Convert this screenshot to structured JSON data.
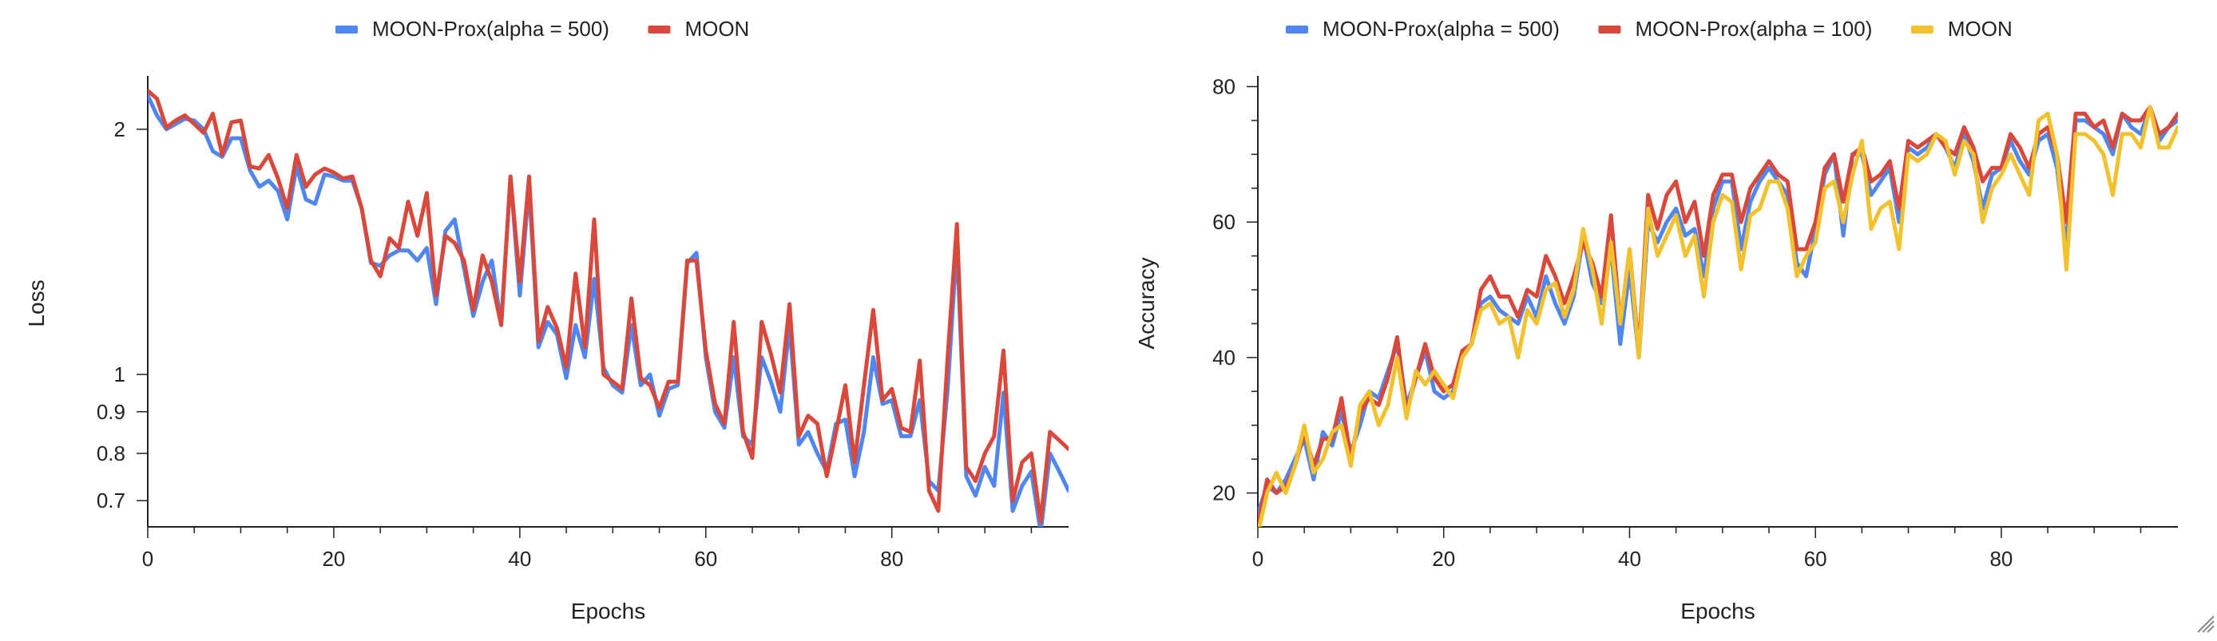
{
  "colors": {
    "blue": "#4f86f0",
    "red": "#d9483b",
    "yellow": "#f2c12e",
    "axis": "#222222"
  },
  "chart_data": [
    {
      "type": "line",
      "title": "",
      "xlabel": "Epochs",
      "ylabel": "Loss",
      "yscale": "log",
      "xlim": [
        0,
        99
      ],
      "ylim": [
        0.65,
        2.3
      ],
      "xticks": [
        0,
        20,
        40,
        60,
        80
      ],
      "yticks": [
        0.7,
        0.8,
        0.9,
        1,
        2
      ],
      "ytick_labels": [
        "0.7",
        "0.8",
        "0.9",
        "1",
        "2"
      ],
      "legend_position": "top-center",
      "grid": false,
      "series": [
        {
          "name": "MOON-Prox(alpha = 500)",
          "color": "#4f86f0",
          "values": [
            2.2,
            2.08,
            2.0,
            2.03,
            2.06,
            2.05,
            2.0,
            1.88,
            1.85,
            1.95,
            1.95,
            1.78,
            1.7,
            1.73,
            1.68,
            1.55,
            1.8,
            1.64,
            1.62,
            1.76,
            1.75,
            1.73,
            1.73,
            1.6,
            1.37,
            1.36,
            1.4,
            1.42,
            1.42,
            1.38,
            1.43,
            1.22,
            1.5,
            1.55,
            1.35,
            1.18,
            1.3,
            1.38,
            1.15,
            1.75,
            1.25,
            1.7,
            1.08,
            1.16,
            1.12,
            0.99,
            1.15,
            1.05,
            1.31,
            1.02,
            0.97,
            0.95,
            1.15,
            0.97,
            1.0,
            0.89,
            0.96,
            0.97,
            1.37,
            1.41,
            1.05,
            0.9,
            0.86,
            1.05,
            0.84,
            0.82,
            1.05,
            0.98,
            0.9,
            1.15,
            0.82,
            0.85,
            0.8,
            0.76,
            0.87,
            0.88,
            0.75,
            0.85,
            1.05,
            0.92,
            0.93,
            0.84,
            0.84,
            0.93,
            0.74,
            0.72,
            0.96,
            1.45,
            0.75,
            0.71,
            0.77,
            0.73,
            0.95,
            0.68,
            0.73,
            0.76,
            0.64,
            0.8,
            0.76,
            0.72
          ]
        },
        {
          "name": "MOON",
          "color": "#d9483b",
          "values": [
            2.23,
            2.18,
            2.01,
            2.05,
            2.08,
            2.03,
            1.98,
            2.09,
            1.86,
            2.04,
            2.05,
            1.8,
            1.79,
            1.86,
            1.74,
            1.6,
            1.86,
            1.7,
            1.76,
            1.79,
            1.77,
            1.74,
            1.75,
            1.6,
            1.38,
            1.32,
            1.47,
            1.43,
            1.63,
            1.48,
            1.67,
            1.25,
            1.48,
            1.45,
            1.38,
            1.2,
            1.4,
            1.3,
            1.15,
            1.75,
            1.3,
            1.75,
            1.1,
            1.21,
            1.14,
            1.02,
            1.33,
            1.08,
            1.55,
            1.0,
            0.98,
            0.96,
            1.24,
            0.99,
            0.97,
            0.91,
            0.98,
            0.98,
            1.38,
            1.38,
            1.07,
            0.92,
            0.87,
            1.16,
            0.85,
            0.79,
            1.16,
            1.06,
            0.95,
            1.22,
            0.84,
            0.89,
            0.87,
            0.75,
            0.85,
            0.97,
            0.78,
            0.97,
            1.2,
            0.93,
            0.96,
            0.86,
            0.85,
            1.04,
            0.72,
            0.68,
            1.05,
            1.53,
            0.77,
            0.74,
            0.8,
            0.84,
            1.07,
            0.7,
            0.78,
            0.8,
            0.66,
            0.85,
            0.83,
            0.81
          ]
        }
      ]
    },
    {
      "type": "line",
      "title": "",
      "xlabel": "Epochs",
      "ylabel": "Accuracy",
      "xlim": [
        0,
        99
      ],
      "ylim": [
        15,
        81
      ],
      "xticks": [
        0,
        20,
        40,
        60,
        80
      ],
      "yticks": [
        20,
        40,
        60,
        80
      ],
      "legend_position": "top-center",
      "grid": false,
      "series": [
        {
          "name": "MOON-Prox(alpha = 500)",
          "color": "#4f86f0",
          "values": [
            17,
            21,
            20,
            22,
            25,
            28,
            22,
            29,
            27,
            32,
            26,
            30,
            35,
            34,
            38,
            42,
            33,
            37,
            41,
            35,
            34,
            35,
            40,
            42,
            48,
            49,
            47,
            46,
            45,
            49,
            46,
            52,
            48,
            45,
            49,
            58,
            51,
            48,
            56,
            42,
            53,
            40,
            60,
            57,
            60,
            62,
            58,
            59,
            52,
            62,
            66,
            66,
            56,
            63,
            66,
            68,
            66,
            64,
            54,
            52,
            59,
            67,
            70,
            58,
            70,
            70,
            64,
            66,
            68,
            60,
            71,
            70,
            71,
            73,
            71,
            68,
            73,
            69,
            62,
            67,
            68,
            72,
            69,
            67,
            72,
            73,
            68,
            56,
            75,
            75,
            74,
            73,
            70,
            76,
            74,
            73,
            77,
            72,
            74,
            75
          ]
        },
        {
          "name": "MOON-Prox(alpha = 100)",
          "color": "#d9483b",
          "values": [
            15,
            22,
            20,
            21,
            24,
            29,
            24,
            28,
            28,
            34,
            25,
            32,
            34,
            33,
            37,
            43,
            32,
            37,
            42,
            37,
            35,
            36,
            41,
            42,
            50,
            52,
            49,
            49,
            46,
            50,
            49,
            55,
            52,
            48,
            52,
            57,
            54,
            49,
            61,
            45,
            56,
            41,
            64,
            59,
            64,
            66,
            60,
            63,
            55,
            64,
            67,
            67,
            60,
            65,
            67,
            69,
            67,
            66,
            56,
            56,
            60,
            68,
            70,
            63,
            70,
            71,
            66,
            67,
            69,
            62,
            72,
            71,
            72,
            73,
            71,
            70,
            74,
            71,
            66,
            68,
            68,
            73,
            71,
            68,
            73,
            74,
            70,
            60,
            76,
            76,
            74,
            75,
            71,
            76,
            75,
            75,
            77,
            73,
            74,
            76
          ]
        },
        {
          "name": "MOON",
          "color": "#f2c12e",
          "values": [
            14,
            20,
            23,
            20,
            24,
            30,
            23,
            25,
            29,
            30,
            24,
            33,
            35,
            30,
            33,
            40,
            31,
            38,
            36,
            38,
            36,
            34,
            40,
            42,
            47,
            48,
            45,
            46,
            40,
            47,
            45,
            50,
            51,
            46,
            50,
            59,
            53,
            45,
            57,
            45,
            56,
            40,
            62,
            55,
            58,
            61,
            55,
            58,
            49,
            60,
            64,
            63,
            53,
            61,
            62,
            66,
            66,
            62,
            52,
            55,
            57,
            65,
            66,
            60,
            67,
            72,
            59,
            62,
            63,
            56,
            70,
            69,
            70,
            73,
            72,
            67,
            72,
            70,
            60,
            65,
            67,
            70,
            67,
            64,
            75,
            76,
            70,
            53,
            73,
            73,
            72,
            70,
            64,
            73,
            73,
            71,
            77,
            71,
            71,
            74
          ]
        }
      ]
    }
  ]
}
